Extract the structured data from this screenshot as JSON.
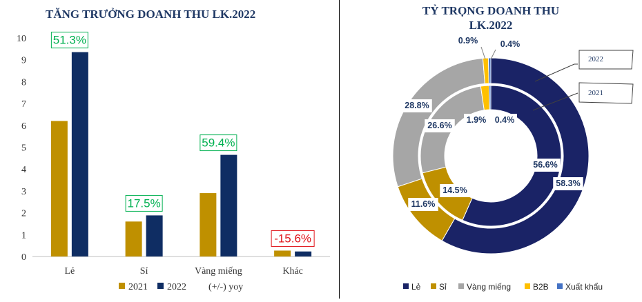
{
  "chart_data": [
    {
      "type": "bar",
      "title": "TĂNG TRƯỞNG DOANH THU LK.2022",
      "categories": [
        "Lẻ",
        "Sỉ",
        "Vàng miếng",
        "Khác"
      ],
      "series": [
        {
          "name": "2021",
          "values": [
            6.2,
            1.6,
            2.9,
            0.27
          ]
        },
        {
          "name": "2022",
          "values": [
            9.35,
            1.88,
            4.65,
            0.23
          ]
        }
      ],
      "yoy": [
        "51.3%",
        "17.5%",
        "59.4%",
        "-15.6%"
      ],
      "yoy_legend": "(+/-) yoy",
      "ylim": [
        0,
        10
      ],
      "yticks": [
        "0",
        "1",
        "2",
        "3",
        "4",
        "5",
        "6",
        "7",
        "8",
        "9",
        "10"
      ],
      "colors": {
        "2021": "#bf9000",
        "2022": "#0f2d63",
        "yoy_positive": "#00b050",
        "yoy_negative": "#e0141b"
      }
    },
    {
      "type": "pie",
      "title_lines": [
        "TỶ TRỌNG DOANH THU",
        "LK.2022"
      ],
      "categories": [
        "Lẻ",
        "Sỉ",
        "Vàng miếng",
        "B2B",
        "Xuất khẩu"
      ],
      "series": [
        {
          "name": "2022",
          "values": [
            58.3,
            11.6,
            28.8,
            0.9,
            0.4
          ],
          "labels": [
            "58.3%",
            "11.6%",
            "28.8%",
            "0.9%",
            "0.4%"
          ]
        },
        {
          "name": "2021",
          "values": [
            56.6,
            14.5,
            26.6,
            1.9,
            0.4
          ],
          "labels": [
            "56.6%",
            "14.5%",
            "26.6%",
            "1.9%",
            "0.4%"
          ]
        }
      ],
      "callouts": [
        "2022",
        "2021"
      ],
      "colors": [
        "#1a2366",
        "#bf9000",
        "#a6a6a6",
        "#ffc000",
        "#4472c4"
      ]
    }
  ]
}
